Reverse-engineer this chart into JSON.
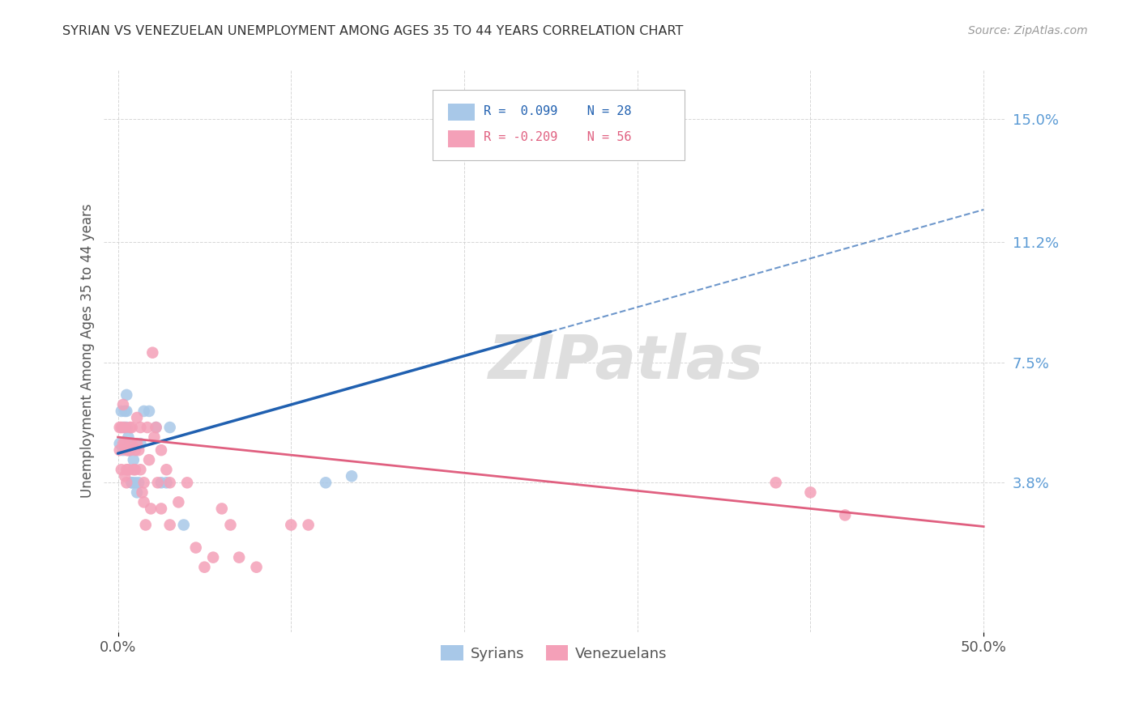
{
  "title": "SYRIAN VS VENEZUELAN UNEMPLOYMENT AMONG AGES 35 TO 44 YEARS CORRELATION CHART",
  "source": "Source: ZipAtlas.com",
  "ylabel": "Unemployment Among Ages 35 to 44 years",
  "xlim": [
    0.0,
    0.5
  ],
  "ylim": [
    0.0,
    0.16
  ],
  "ytick_labels_right": [
    "3.8%",
    "7.5%",
    "11.2%",
    "15.0%"
  ],
  "ytick_values_right": [
    0.038,
    0.075,
    0.112,
    0.15
  ],
  "syrian_color": "#a8c8e8",
  "venezuelan_color": "#f4a0b8",
  "syrian_line_color": "#2060b0",
  "venezuelan_line_color": "#e06080",
  "syrian_R": 0.099,
  "syrian_N": 28,
  "venezuelan_R": -0.209,
  "venezuelan_N": 56,
  "watermark": "ZIPatlas",
  "background_color": "#ffffff",
  "grid_color": "#cccccc",
  "syrian_x": [
    0.001,
    0.002,
    0.003,
    0.003,
    0.004,
    0.005,
    0.005,
    0.005,
    0.006,
    0.006,
    0.007,
    0.007,
    0.008,
    0.008,
    0.009,
    0.01,
    0.011,
    0.012,
    0.013,
    0.015,
    0.018,
    0.022,
    0.025,
    0.028,
    0.03,
    0.12,
    0.135,
    0.038
  ],
  "syrian_y": [
    0.05,
    0.06,
    0.055,
    0.048,
    0.06,
    0.065,
    0.06,
    0.055,
    0.052,
    0.048,
    0.048,
    0.05,
    0.038,
    0.038,
    0.045,
    0.038,
    0.035,
    0.038,
    0.05,
    0.06,
    0.06,
    0.055,
    0.038,
    0.038,
    0.055,
    0.038,
    0.04,
    0.025
  ],
  "venezuelan_x": [
    0.001,
    0.001,
    0.002,
    0.002,
    0.003,
    0.003,
    0.004,
    0.004,
    0.004,
    0.005,
    0.005,
    0.005,
    0.006,
    0.006,
    0.007,
    0.007,
    0.008,
    0.008,
    0.009,
    0.01,
    0.01,
    0.011,
    0.011,
    0.012,
    0.013,
    0.013,
    0.014,
    0.015,
    0.015,
    0.016,
    0.017,
    0.018,
    0.019,
    0.02,
    0.021,
    0.022,
    0.023,
    0.025,
    0.025,
    0.028,
    0.03,
    0.03,
    0.035,
    0.04,
    0.045,
    0.05,
    0.055,
    0.06,
    0.065,
    0.07,
    0.08,
    0.1,
    0.11,
    0.38,
    0.4,
    0.42
  ],
  "venezuelan_y": [
    0.055,
    0.048,
    0.055,
    0.042,
    0.062,
    0.05,
    0.055,
    0.05,
    0.04,
    0.048,
    0.042,
    0.038,
    0.048,
    0.042,
    0.055,
    0.048,
    0.055,
    0.05,
    0.042,
    0.048,
    0.042,
    0.058,
    0.05,
    0.048,
    0.042,
    0.055,
    0.035,
    0.038,
    0.032,
    0.025,
    0.055,
    0.045,
    0.03,
    0.078,
    0.052,
    0.055,
    0.038,
    0.048,
    0.03,
    0.042,
    0.038,
    0.025,
    0.032,
    0.038,
    0.018,
    0.012,
    0.015,
    0.03,
    0.025,
    0.015,
    0.012,
    0.025,
    0.025,
    0.038,
    0.035,
    0.028
  ]
}
